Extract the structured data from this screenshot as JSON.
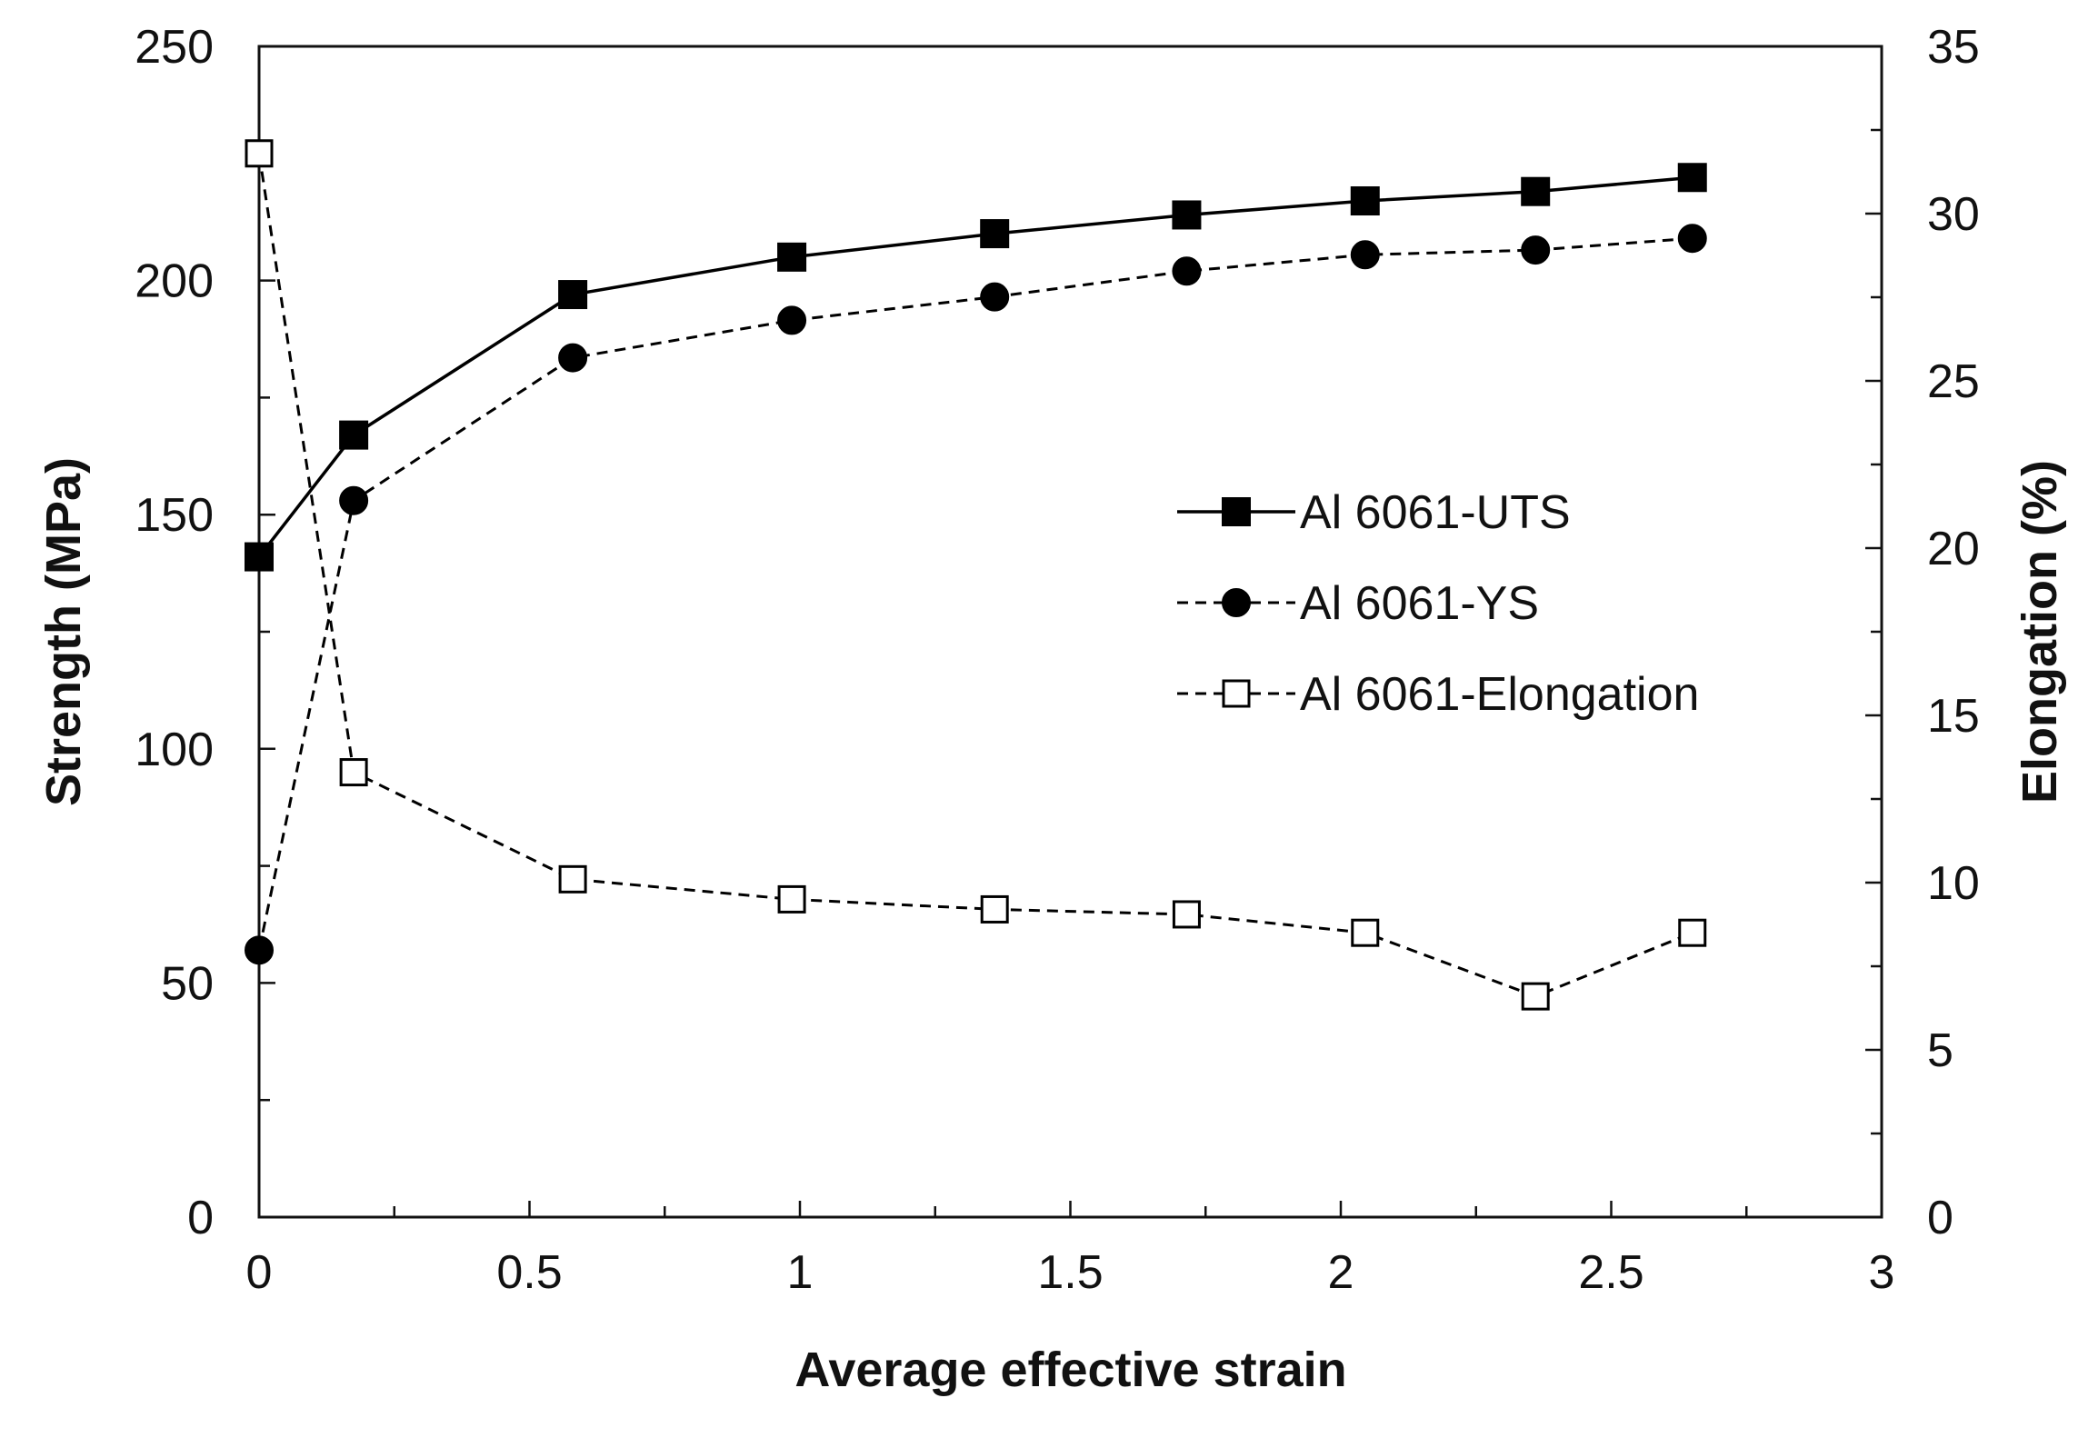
{
  "chart_data": {
    "type": "line",
    "title": "",
    "xlabel": "Average effective strain",
    "ylabel": "Strength (MPa)",
    "y2label": "Elongation (%)",
    "xlim": [
      0,
      3
    ],
    "ylim": [
      0,
      250
    ],
    "y2lim": [
      0,
      35
    ],
    "xticks": [
      0,
      0.5,
      1,
      1.5,
      2,
      2.5,
      3
    ],
    "xtick_labels": [
      "0",
      "0.5",
      "1",
      "1.5",
      "2",
      "2.5",
      "3"
    ],
    "yticks": [
      0,
      50,
      100,
      150,
      200,
      250
    ],
    "ytick_labels": [
      "0",
      "50",
      "100",
      "150",
      "200",
      "250"
    ],
    "y2ticks": [
      0,
      5,
      10,
      15,
      20,
      25,
      30,
      35
    ],
    "y2tick_labels": [
      "0",
      "5",
      "10",
      "15",
      "20",
      "25",
      "30",
      "35"
    ],
    "grid": false,
    "legend_position": "center-right",
    "series": [
      {
        "name": "Al 6061-UTS",
        "axis": "left",
        "marker": "filled-square",
        "line": "solid",
        "x": [
          0,
          0.175,
          0.58,
          0.985,
          1.36,
          1.715,
          2.045,
          2.36,
          2.65
        ],
        "values": [
          141,
          167,
          197,
          205,
          210,
          214,
          217,
          219,
          222
        ]
      },
      {
        "name": "Al 6061-YS",
        "axis": "left",
        "marker": "filled-circle",
        "line": "dashed",
        "x": [
          0,
          0.175,
          0.58,
          0.985,
          1.36,
          1.715,
          2.045,
          2.36,
          2.65
        ],
        "values": [
          57,
          153,
          183.5,
          191.5,
          196.5,
          202,
          205.5,
          206.5,
          209
        ]
      },
      {
        "name": "Al 6061-Elongation",
        "axis": "right",
        "marker": "open-square",
        "line": "dashed",
        "x": [
          0,
          0.175,
          0.58,
          0.985,
          1.36,
          1.715,
          2.045,
          2.36,
          2.65
        ],
        "values": [
          31.8,
          13.3,
          10.1,
          9.5,
          9.2,
          9.05,
          8.5,
          6.6,
          8.5
        ]
      }
    ]
  }
}
